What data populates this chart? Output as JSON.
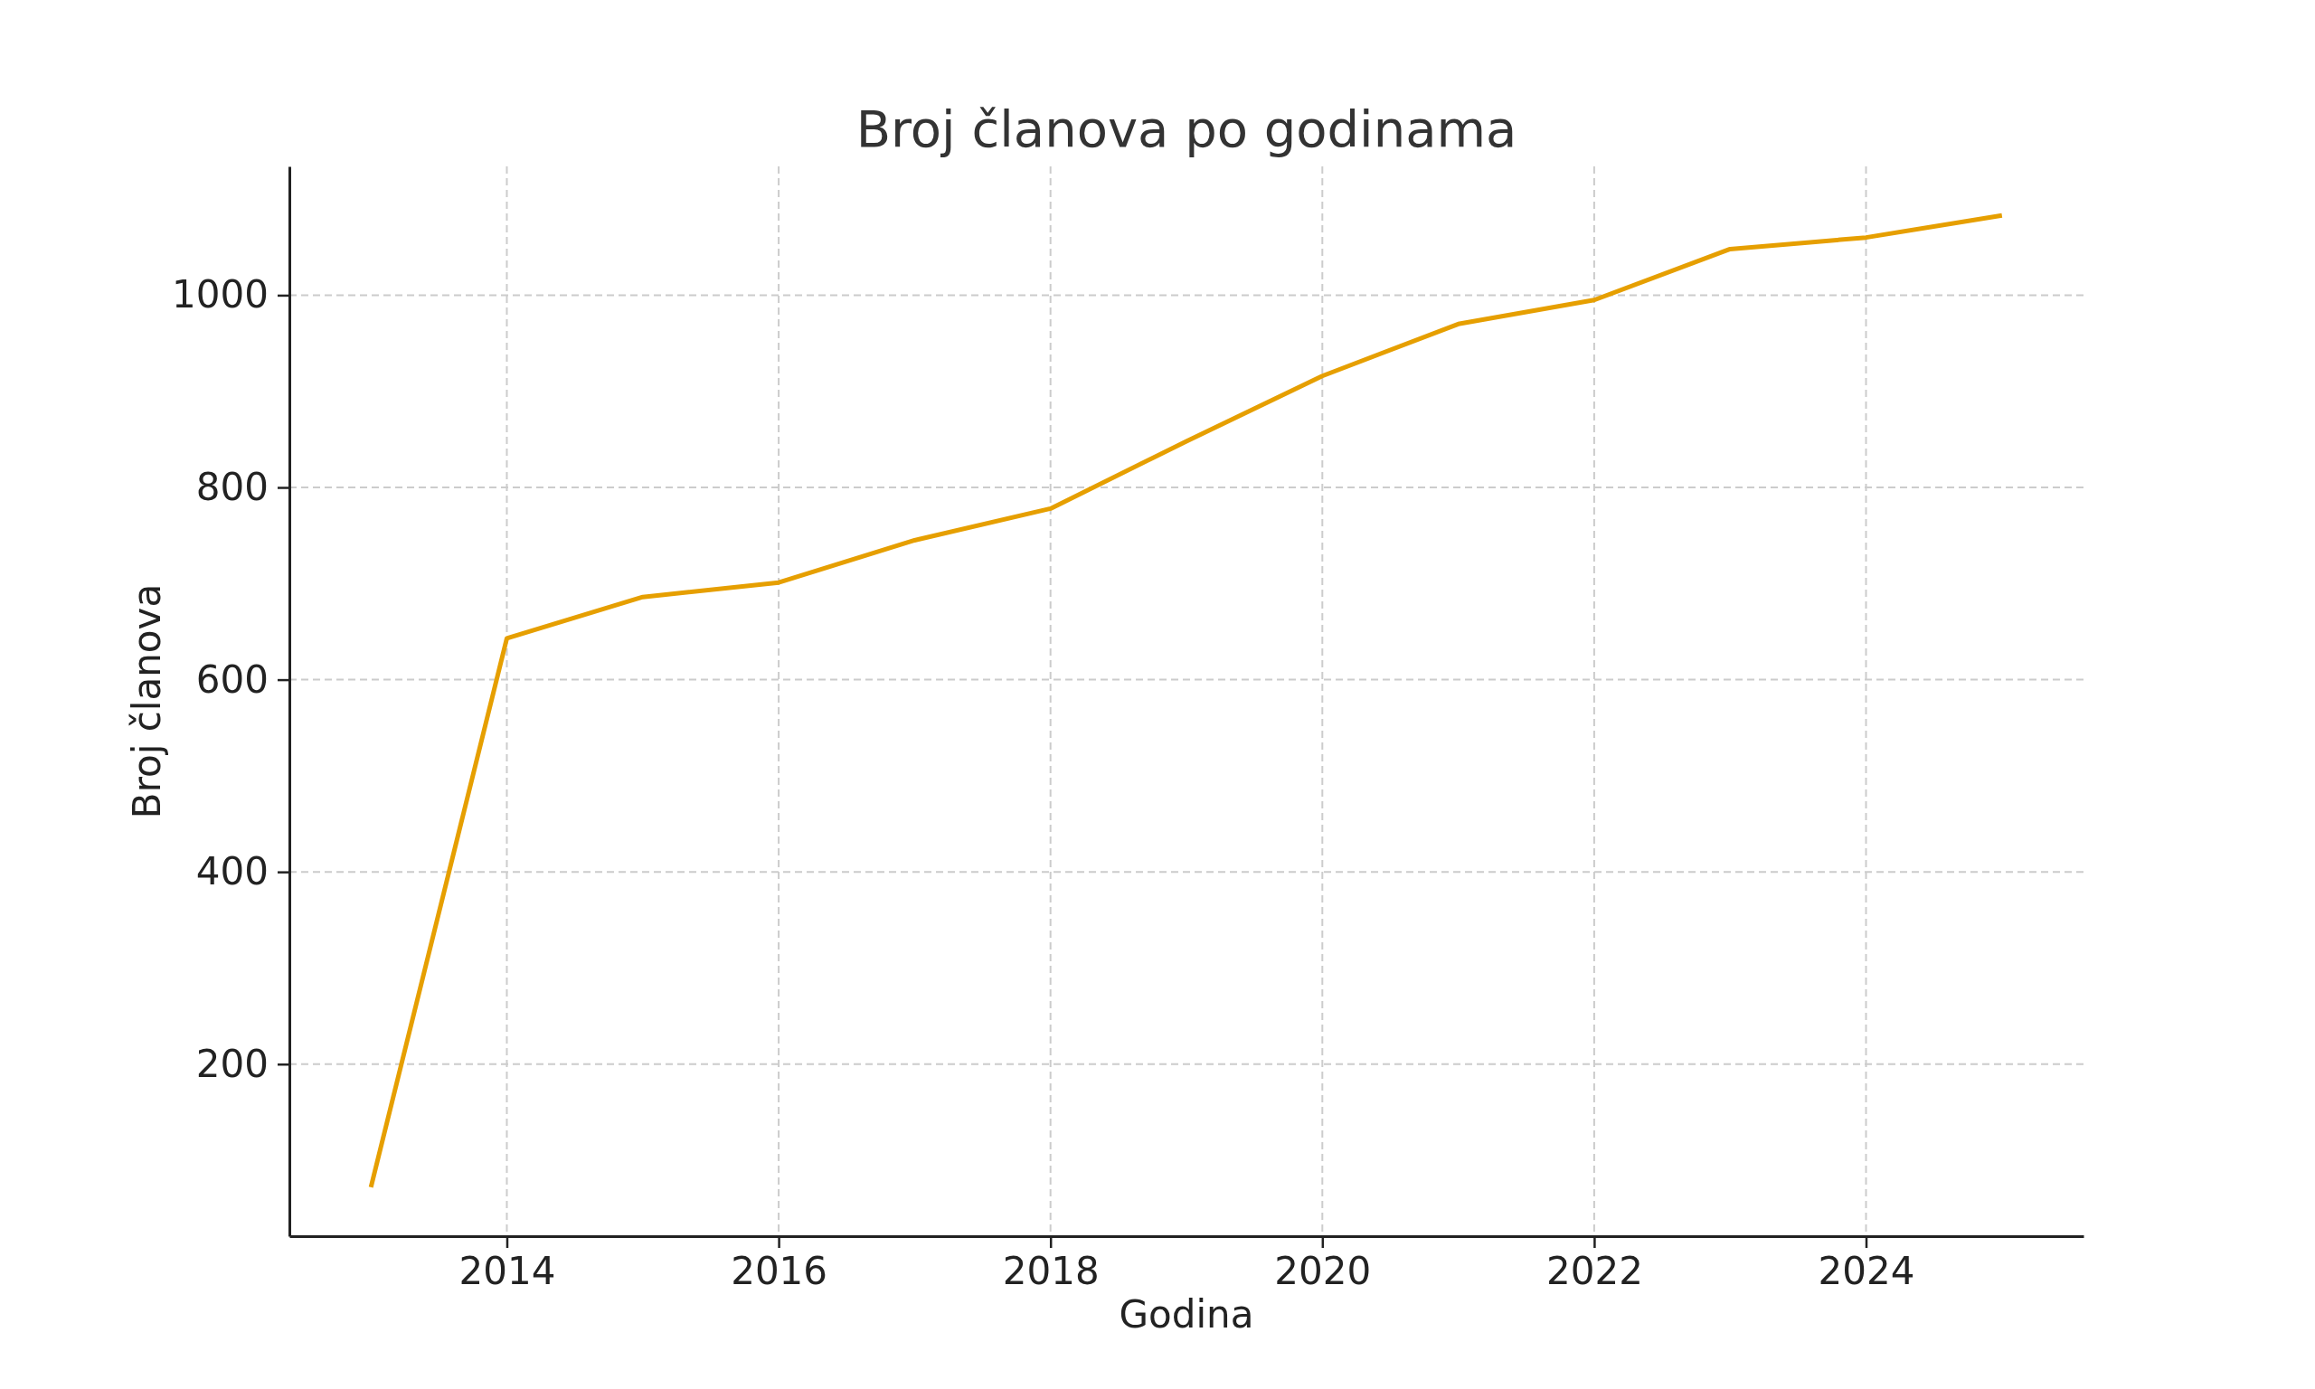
{
  "chart_data": {
    "type": "line",
    "title": "Broj članova po godinama",
    "xlabel": "Godina",
    "ylabel": "Broj članova",
    "x": [
      2013,
      2014,
      2015,
      2016,
      2017,
      2018,
      2019,
      2020,
      2021,
      2022,
      2023,
      2024,
      2025
    ],
    "series": [
      {
        "color": "#e69f00",
        "values": [
          72,
          643,
          686,
          701,
          745,
          778,
          848,
          916,
          970,
          995,
          1048,
          1060,
          1083
        ]
      }
    ],
    "xlim": [
      2012.4,
      2025.6
    ],
    "xticks": [
      2014,
      2016,
      2018,
      2020,
      2022,
      2024
    ],
    "ylim": [
      21,
      1134
    ],
    "yticks": [
      200,
      400,
      600,
      800,
      1000
    ],
    "grid": true,
    "line_style": "solid"
  }
}
